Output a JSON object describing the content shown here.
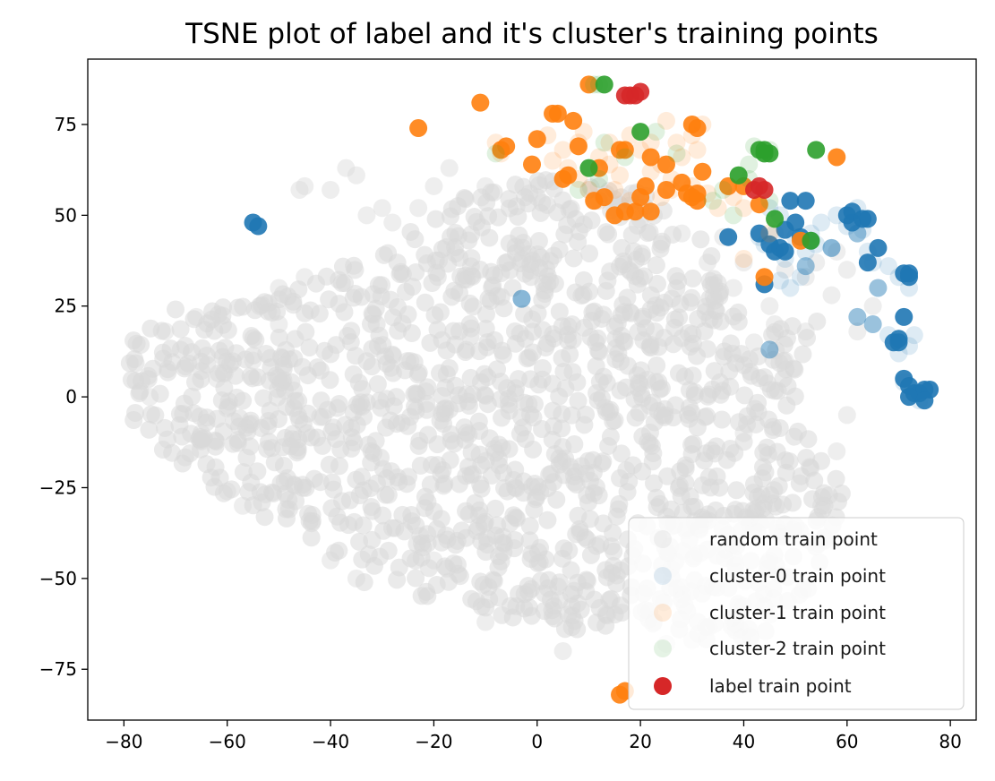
{
  "chart_data": {
    "type": "scatter",
    "title": "TSNE plot of label and it's cluster's training points",
    "xlabel": "",
    "ylabel": "",
    "xlim": [
      -87,
      85
    ],
    "ylim": [
      -89,
      93
    ],
    "x_ticks": [
      -80,
      -60,
      -40,
      -20,
      0,
      20,
      40,
      60,
      80
    ],
    "x_tick_labels": [
      "−80",
      "−60",
      "−40",
      "−20",
      "0",
      "20",
      "40",
      "60",
      "80"
    ],
    "y_ticks": [
      -75,
      -50,
      -25,
      0,
      25,
      50,
      75
    ],
    "y_tick_labels": [
      "−75",
      "−50",
      "−25",
      "0",
      "25",
      "50",
      "75"
    ],
    "grid": false,
    "legend_position": "bottom-right",
    "series": [
      {
        "name": "random train point",
        "color": "#d9d9d9",
        "region": [
          [
            -80,
            15
          ],
          [
            -70,
            25
          ],
          [
            -55,
            25
          ],
          [
            -40,
            35
          ],
          [
            -30,
            40
          ],
          [
            -15,
            55
          ],
          [
            0,
            60
          ],
          [
            20,
            58
          ],
          [
            33,
            42
          ],
          [
            37,
            25
          ],
          [
            45,
            18
          ],
          [
            55,
            22
          ],
          [
            50,
            -5
          ],
          [
            60,
            -25
          ],
          [
            55,
            -45
          ],
          [
            50,
            -62
          ],
          [
            38,
            -68
          ],
          [
            20,
            -65
          ],
          [
            0,
            -65
          ],
          [
            -15,
            -55
          ],
          [
            -30,
            -55
          ],
          [
            -45,
            -38
          ],
          [
            -58,
            -30
          ],
          [
            -70,
            -18
          ],
          [
            -80,
            -5
          ]
        ],
        "points": [
          [
            -45,
            58
          ],
          [
            -40,
            57
          ],
          [
            -35,
            61
          ],
          [
            -37,
            63
          ],
          [
            -46,
            57
          ],
          [
            -33,
            50
          ],
          [
            -23,
            52
          ],
          [
            -17,
            63
          ],
          [
            -28,
            48
          ],
          [
            -50,
            20
          ],
          [
            -55,
            10
          ],
          [
            -62,
            5
          ],
          [
            -60,
            -26
          ],
          [
            -57,
            -30
          ],
          [
            -35,
            -50
          ],
          [
            -10,
            -62
          ],
          [
            5,
            -70
          ],
          [
            30,
            -67
          ],
          [
            45,
            -45
          ],
          [
            55,
            -30
          ],
          [
            58,
            -15
          ],
          [
            60,
            -5
          ],
          [
            62,
            18
          ],
          [
            65,
            25
          ],
          [
            57,
            28
          ],
          [
            52,
            18
          ],
          [
            48,
            35
          ],
          [
            45,
            25
          ],
          [
            40,
            37
          ],
          [
            42,
            15
          ],
          [
            60,
            35
          ],
          [
            58,
            40
          ],
          [
            54,
            37
          ],
          [
            33,
            37
          ],
          [
            38,
            30
          ],
          [
            28,
            45
          ],
          [
            24,
            42
          ],
          [
            36,
            44
          ],
          [
            46,
            20
          ],
          [
            52,
            33
          ],
          [
            48,
            10
          ],
          [
            40,
            -10
          ],
          [
            45,
            -60
          ],
          [
            25,
            -68
          ],
          [
            -20,
            -45
          ],
          [
            -40,
            -45
          ],
          [
            -65,
            -10
          ],
          [
            -75,
            0
          ],
          [
            -72,
            18
          ],
          [
            -66,
            22
          ],
          [
            -50,
            30
          ],
          [
            -45,
            33
          ],
          [
            -30,
            52
          ],
          [
            -20,
            58
          ],
          [
            -10,
            58
          ],
          [
            10,
            57
          ],
          [
            0,
            55
          ],
          [
            15,
            52
          ]
        ]
      },
      {
        "name": "cluster-0 train point",
        "color": "#1f77b4",
        "faint_points": [
          [
            44,
            42
          ],
          [
            46,
            45
          ],
          [
            48,
            38
          ],
          [
            50,
            44
          ],
          [
            52,
            40
          ],
          [
            54,
            42
          ],
          [
            47,
            32
          ],
          [
            49,
            30
          ],
          [
            51,
            33
          ],
          [
            55,
            48
          ],
          [
            58,
            50
          ],
          [
            60,
            47
          ],
          [
            62,
            52
          ],
          [
            63,
            46
          ],
          [
            64,
            40
          ],
          [
            65,
            37
          ],
          [
            68,
            36
          ],
          [
            70,
            33
          ],
          [
            72,
            30
          ],
          [
            68,
            17
          ],
          [
            72,
            14
          ],
          [
            70,
            12
          ],
          [
            73,
            17
          ],
          [
            71,
            4
          ],
          [
            74,
            -1
          ],
          [
            76,
            2
          ],
          [
            45,
            52
          ],
          [
            47,
            50
          ],
          [
            43,
            44
          ],
          [
            53,
            45
          ],
          [
            57,
            41
          ],
          [
            -3,
            27
          ]
        ],
        "mid_points": [
          [
            -3,
            27
          ],
          [
            45,
            13
          ],
          [
            53,
            43
          ],
          [
            52,
            36
          ],
          [
            57,
            41
          ],
          [
            62,
            45
          ],
          [
            66,
            30
          ],
          [
            62,
            22
          ],
          [
            65,
            20
          ]
        ],
        "points": [
          [
            -55,
            48
          ],
          [
            -54,
            47
          ],
          [
            37,
            44
          ],
          [
            43,
            45
          ],
          [
            45,
            42
          ],
          [
            46,
            40
          ],
          [
            47,
            41
          ],
          [
            48,
            40
          ],
          [
            49,
            54
          ],
          [
            48,
            46
          ],
          [
            50,
            48
          ],
          [
            51,
            44
          ],
          [
            52,
            54
          ],
          [
            60,
            50
          ],
          [
            61,
            51
          ],
          [
            61,
            48
          ],
          [
            64,
            49
          ],
          [
            63,
            49
          ],
          [
            64,
            37
          ],
          [
            66,
            41
          ],
          [
            71,
            34
          ],
          [
            72,
            33
          ],
          [
            72,
            34
          ],
          [
            71,
            22
          ],
          [
            69,
            15
          ],
          [
            70,
            16
          ],
          [
            70,
            15
          ],
          [
            71,
            5
          ],
          [
            72,
            3
          ],
          [
            73,
            1
          ],
          [
            74,
            1
          ],
          [
            75,
            2
          ],
          [
            76,
            2
          ],
          [
            72,
            0
          ],
          [
            75,
            -1
          ],
          [
            44,
            31
          ]
        ]
      },
      {
        "name": "cluster-1 train point",
        "color": "#ff7f0e",
        "faint_points": [
          [
            -8,
            70
          ],
          [
            -7,
            67
          ],
          [
            2,
            72
          ],
          [
            5,
            68
          ],
          [
            8,
            70
          ],
          [
            12,
            66
          ],
          [
            14,
            70
          ],
          [
            18,
            72
          ],
          [
            20,
            68
          ],
          [
            22,
            62
          ],
          [
            24,
            64
          ],
          [
            26,
            60
          ],
          [
            28,
            66
          ],
          [
            30,
            72
          ],
          [
            32,
            75
          ],
          [
            31,
            68
          ],
          [
            27,
            70
          ],
          [
            8,
            60
          ],
          [
            10,
            57
          ],
          [
            12,
            54
          ],
          [
            15,
            57
          ],
          [
            18,
            54
          ],
          [
            20,
            52
          ],
          [
            24,
            55
          ],
          [
            26,
            57
          ],
          [
            30,
            58
          ],
          [
            33,
            56
          ],
          [
            35,
            52
          ],
          [
            38,
            55
          ],
          [
            40,
            52
          ],
          [
            14,
            64
          ],
          [
            16,
            61
          ],
          [
            6,
            63
          ],
          [
            3,
            65
          ],
          [
            9,
            73
          ],
          [
            22,
            70
          ],
          [
            25,
            76
          ],
          [
            40,
            38
          ],
          [
            45,
            45
          ]
        ],
        "points": [
          [
            -23,
            74
          ],
          [
            -11,
            81
          ],
          [
            -6,
            69
          ],
          [
            -7,
            68
          ],
          [
            -1,
            64
          ],
          [
            0,
            71
          ],
          [
            3,
            78
          ],
          [
            4,
            78
          ],
          [
            7,
            76
          ],
          [
            5,
            60
          ],
          [
            6,
            61
          ],
          [
            8,
            69
          ],
          [
            10,
            86
          ],
          [
            11,
            54
          ],
          [
            13,
            55
          ],
          [
            12,
            63
          ],
          [
            16,
            68
          ],
          [
            17,
            68
          ],
          [
            15,
            50
          ],
          [
            17,
            51
          ],
          [
            19,
            51
          ],
          [
            20,
            55
          ],
          [
            21,
            58
          ],
          [
            22,
            66
          ],
          [
            22,
            51
          ],
          [
            25,
            64
          ],
          [
            25,
            57
          ],
          [
            28,
            59
          ],
          [
            29,
            56
          ],
          [
            30,
            75
          ],
          [
            31,
            74
          ],
          [
            30,
            55
          ],
          [
            31,
            54
          ],
          [
            31,
            56
          ],
          [
            32,
            62
          ],
          [
            37,
            58
          ],
          [
            40,
            58
          ],
          [
            43,
            53
          ],
          [
            44,
            33
          ],
          [
            51,
            43
          ],
          [
            58,
            66
          ],
          [
            16,
            -82
          ],
          [
            17,
            -81
          ]
        ]
      },
      {
        "name": "cluster-2 train point",
        "color": "#2ca02c",
        "faint_points": [
          [
            -8,
            67
          ],
          [
            8,
            57
          ],
          [
            12,
            60
          ],
          [
            13,
            70
          ],
          [
            17,
            66
          ],
          [
            23,
            73
          ],
          [
            27,
            67
          ],
          [
            34,
            54
          ],
          [
            36,
            57
          ],
          [
            39,
            61
          ],
          [
            41,
            64
          ],
          [
            42,
            69
          ],
          [
            44,
            67
          ],
          [
            45,
            68
          ],
          [
            41,
            60
          ],
          [
            38,
            50
          ],
          [
            45,
            54
          ],
          [
            11,
            86
          ],
          [
            12,
            86
          ]
        ],
        "points": [
          [
            10,
            63
          ],
          [
            20,
            73
          ],
          [
            39,
            61
          ],
          [
            43,
            68
          ],
          [
            44,
            67
          ],
          [
            44,
            68
          ],
          [
            45,
            67
          ],
          [
            46,
            49
          ],
          [
            53,
            43
          ],
          [
            54,
            68
          ],
          [
            13,
            86
          ]
        ]
      },
      {
        "name": "label train point",
        "color": "#d62728",
        "points": [
          [
            17,
            83
          ],
          [
            18,
            83
          ],
          [
            19,
            83
          ],
          [
            20,
            84
          ],
          [
            42,
            57
          ],
          [
            43,
            58
          ],
          [
            44,
            57
          ]
        ]
      }
    ]
  }
}
